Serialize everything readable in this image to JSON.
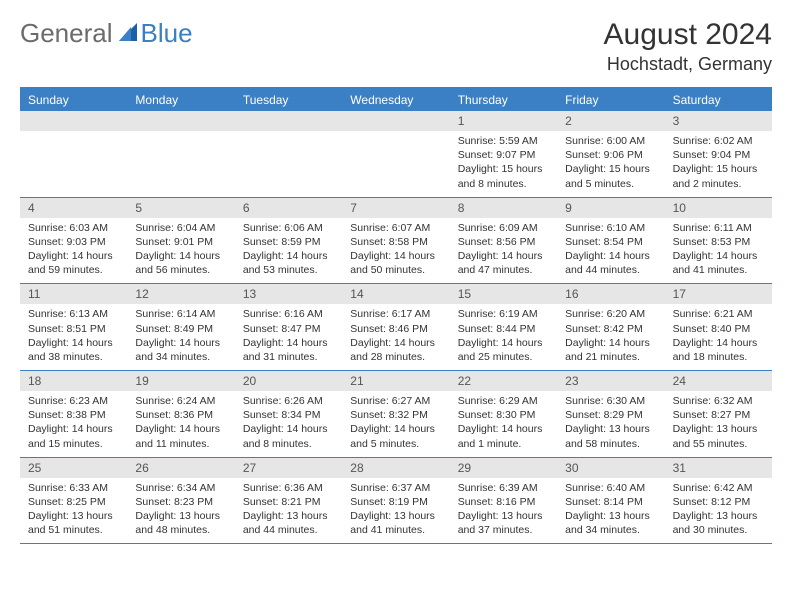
{
  "logo": {
    "text_general": "General",
    "text_blue": "Blue"
  },
  "title": "August 2024",
  "location": "Hochstadt, Germany",
  "colors": {
    "header_bg": "#3b7fc4",
    "daynum_bg": "#e6e6e6",
    "text": "#333333",
    "logo_gray": "#6b6b6b"
  },
  "day_names": [
    "Sunday",
    "Monday",
    "Tuesday",
    "Wednesday",
    "Thursday",
    "Friday",
    "Saturday"
  ],
  "weeks": [
    [
      {
        "n": "",
        "sr": "",
        "ss": "",
        "dl": ""
      },
      {
        "n": "",
        "sr": "",
        "ss": "",
        "dl": ""
      },
      {
        "n": "",
        "sr": "",
        "ss": "",
        "dl": ""
      },
      {
        "n": "",
        "sr": "",
        "ss": "",
        "dl": ""
      },
      {
        "n": "1",
        "sr": "Sunrise: 5:59 AM",
        "ss": "Sunset: 9:07 PM",
        "dl": "Daylight: 15 hours and 8 minutes."
      },
      {
        "n": "2",
        "sr": "Sunrise: 6:00 AM",
        "ss": "Sunset: 9:06 PM",
        "dl": "Daylight: 15 hours and 5 minutes."
      },
      {
        "n": "3",
        "sr": "Sunrise: 6:02 AM",
        "ss": "Sunset: 9:04 PM",
        "dl": "Daylight: 15 hours and 2 minutes."
      }
    ],
    [
      {
        "n": "4",
        "sr": "Sunrise: 6:03 AM",
        "ss": "Sunset: 9:03 PM",
        "dl": "Daylight: 14 hours and 59 minutes."
      },
      {
        "n": "5",
        "sr": "Sunrise: 6:04 AM",
        "ss": "Sunset: 9:01 PM",
        "dl": "Daylight: 14 hours and 56 minutes."
      },
      {
        "n": "6",
        "sr": "Sunrise: 6:06 AM",
        "ss": "Sunset: 8:59 PM",
        "dl": "Daylight: 14 hours and 53 minutes."
      },
      {
        "n": "7",
        "sr": "Sunrise: 6:07 AM",
        "ss": "Sunset: 8:58 PM",
        "dl": "Daylight: 14 hours and 50 minutes."
      },
      {
        "n": "8",
        "sr": "Sunrise: 6:09 AM",
        "ss": "Sunset: 8:56 PM",
        "dl": "Daylight: 14 hours and 47 minutes."
      },
      {
        "n": "9",
        "sr": "Sunrise: 6:10 AM",
        "ss": "Sunset: 8:54 PM",
        "dl": "Daylight: 14 hours and 44 minutes."
      },
      {
        "n": "10",
        "sr": "Sunrise: 6:11 AM",
        "ss": "Sunset: 8:53 PM",
        "dl": "Daylight: 14 hours and 41 minutes."
      }
    ],
    [
      {
        "n": "11",
        "sr": "Sunrise: 6:13 AM",
        "ss": "Sunset: 8:51 PM",
        "dl": "Daylight: 14 hours and 38 minutes."
      },
      {
        "n": "12",
        "sr": "Sunrise: 6:14 AM",
        "ss": "Sunset: 8:49 PM",
        "dl": "Daylight: 14 hours and 34 minutes."
      },
      {
        "n": "13",
        "sr": "Sunrise: 6:16 AM",
        "ss": "Sunset: 8:47 PM",
        "dl": "Daylight: 14 hours and 31 minutes."
      },
      {
        "n": "14",
        "sr": "Sunrise: 6:17 AM",
        "ss": "Sunset: 8:46 PM",
        "dl": "Daylight: 14 hours and 28 minutes."
      },
      {
        "n": "15",
        "sr": "Sunrise: 6:19 AM",
        "ss": "Sunset: 8:44 PM",
        "dl": "Daylight: 14 hours and 25 minutes."
      },
      {
        "n": "16",
        "sr": "Sunrise: 6:20 AM",
        "ss": "Sunset: 8:42 PM",
        "dl": "Daylight: 14 hours and 21 minutes."
      },
      {
        "n": "17",
        "sr": "Sunrise: 6:21 AM",
        "ss": "Sunset: 8:40 PM",
        "dl": "Daylight: 14 hours and 18 minutes."
      }
    ],
    [
      {
        "n": "18",
        "sr": "Sunrise: 6:23 AM",
        "ss": "Sunset: 8:38 PM",
        "dl": "Daylight: 14 hours and 15 minutes."
      },
      {
        "n": "19",
        "sr": "Sunrise: 6:24 AM",
        "ss": "Sunset: 8:36 PM",
        "dl": "Daylight: 14 hours and 11 minutes."
      },
      {
        "n": "20",
        "sr": "Sunrise: 6:26 AM",
        "ss": "Sunset: 8:34 PM",
        "dl": "Daylight: 14 hours and 8 minutes."
      },
      {
        "n": "21",
        "sr": "Sunrise: 6:27 AM",
        "ss": "Sunset: 8:32 PM",
        "dl": "Daylight: 14 hours and 5 minutes."
      },
      {
        "n": "22",
        "sr": "Sunrise: 6:29 AM",
        "ss": "Sunset: 8:30 PM",
        "dl": "Daylight: 14 hours and 1 minute."
      },
      {
        "n": "23",
        "sr": "Sunrise: 6:30 AM",
        "ss": "Sunset: 8:29 PM",
        "dl": "Daylight: 13 hours and 58 minutes."
      },
      {
        "n": "24",
        "sr": "Sunrise: 6:32 AM",
        "ss": "Sunset: 8:27 PM",
        "dl": "Daylight: 13 hours and 55 minutes."
      }
    ],
    [
      {
        "n": "25",
        "sr": "Sunrise: 6:33 AM",
        "ss": "Sunset: 8:25 PM",
        "dl": "Daylight: 13 hours and 51 minutes."
      },
      {
        "n": "26",
        "sr": "Sunrise: 6:34 AM",
        "ss": "Sunset: 8:23 PM",
        "dl": "Daylight: 13 hours and 48 minutes."
      },
      {
        "n": "27",
        "sr": "Sunrise: 6:36 AM",
        "ss": "Sunset: 8:21 PM",
        "dl": "Daylight: 13 hours and 44 minutes."
      },
      {
        "n": "28",
        "sr": "Sunrise: 6:37 AM",
        "ss": "Sunset: 8:19 PM",
        "dl": "Daylight: 13 hours and 41 minutes."
      },
      {
        "n": "29",
        "sr": "Sunrise: 6:39 AM",
        "ss": "Sunset: 8:16 PM",
        "dl": "Daylight: 13 hours and 37 minutes."
      },
      {
        "n": "30",
        "sr": "Sunrise: 6:40 AM",
        "ss": "Sunset: 8:14 PM",
        "dl": "Daylight: 13 hours and 34 minutes."
      },
      {
        "n": "31",
        "sr": "Sunrise: 6:42 AM",
        "ss": "Sunset: 8:12 PM",
        "dl": "Daylight: 13 hours and 30 minutes."
      }
    ]
  ]
}
